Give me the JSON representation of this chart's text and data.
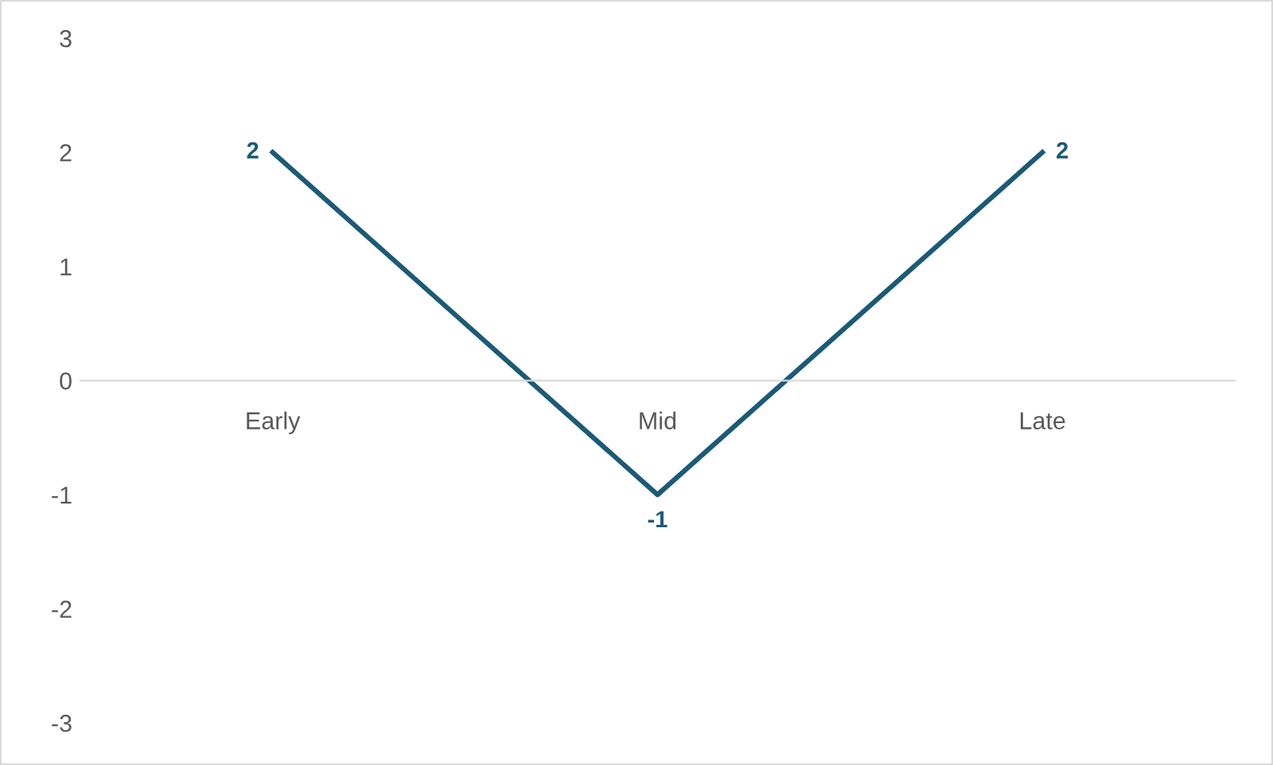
{
  "chart_data": {
    "type": "line",
    "categories": [
      "Early",
      "Mid",
      "Late"
    ],
    "series": [
      {
        "color": "#1b5a78",
        "values": [
          2,
          -1,
          2
        ]
      }
    ],
    "ylim": [
      -3,
      3
    ],
    "yticks": [
      -3,
      -2,
      -1,
      0,
      1,
      2,
      3
    ],
    "grid": false,
    "data_labels": true,
    "marker": "none",
    "line_style": "solid",
    "legend": false
  }
}
